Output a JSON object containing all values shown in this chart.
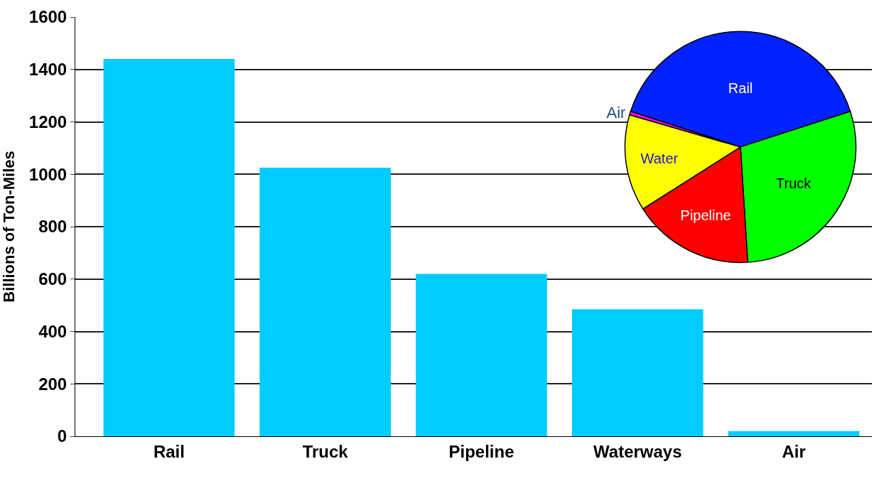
{
  "chart_data": [
    {
      "type": "bar",
      "ylabel": "Billions of Ton-Miles",
      "categories": [
        "Rail",
        "Truck",
        "Pipeline",
        "Waterways",
        "Air"
      ],
      "values": [
        1440,
        1025,
        620,
        485,
        20
      ],
      "color": "#00ccff",
      "ylim": [
        0,
        1600
      ],
      "yticks": [
        0,
        200,
        400,
        600,
        800,
        1000,
        1200,
        1400,
        1600
      ],
      "grid": "y"
    },
    {
      "type": "pie",
      "categories": [
        "Rail",
        "Truck",
        "Pipeline",
        "Water",
        "Air"
      ],
      "values": [
        40,
        29,
        17,
        13.5,
        0.5
      ],
      "colors": [
        "#0022ff",
        "#00ff00",
        "#ff0000",
        "#ffff00",
        "#ff00ff"
      ]
    }
  ]
}
